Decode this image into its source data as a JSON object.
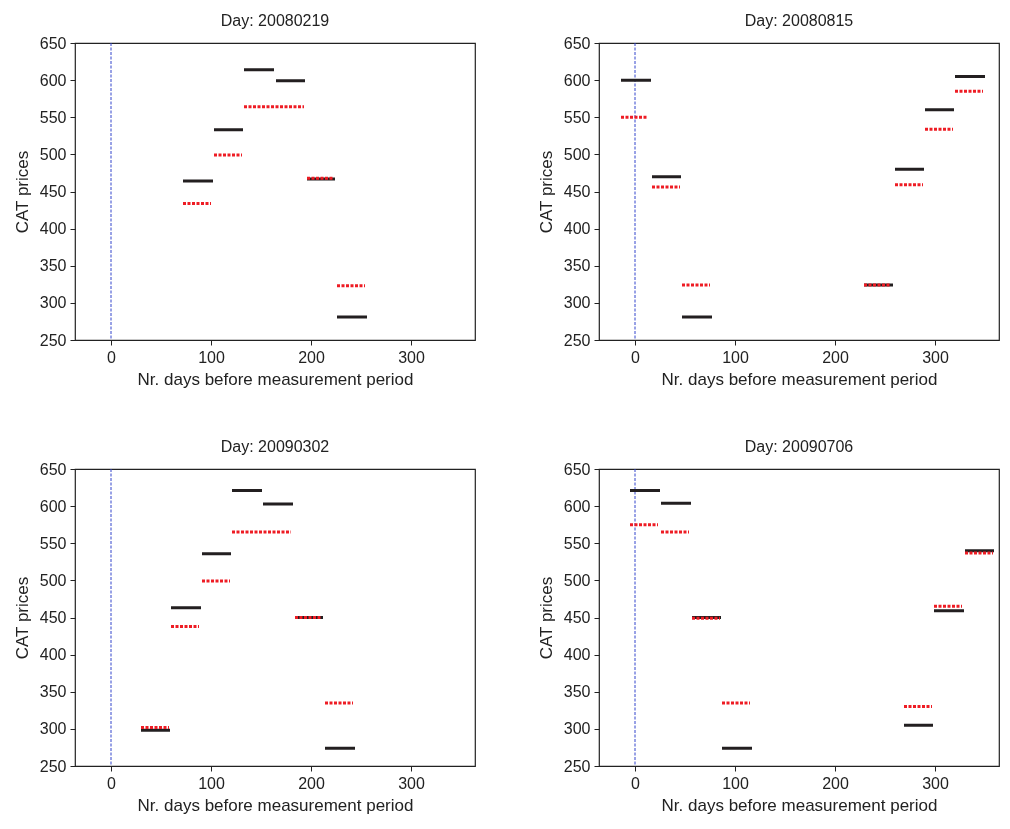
{
  "chart_data": [
    {
      "type": "line",
      "title": "Day: 20080219",
      "xlabel": "Nr. days before measurement period",
      "ylabel": "CAT prices",
      "xlim": [
        -36,
        364
      ],
      "ylim": [
        250,
        650
      ],
      "xticks": [
        0,
        100,
        200,
        300
      ],
      "yticks": [
        250,
        300,
        350,
        400,
        450,
        500,
        550,
        600,
        650
      ],
      "ref_lines": [
        {
          "axis": "x",
          "value": 0,
          "color": "#3344cc",
          "line_style": "dotted"
        }
      ],
      "series": [
        {
          "color": "#231f20",
          "line_style": "solid",
          "x": [
            72,
            102,
            null,
            103,
            132,
            null,
            133,
            163,
            null,
            165,
            194,
            null,
            196,
            224,
            null,
            226,
            256
          ],
          "values": [
            464,
            464,
            null,
            533,
            533,
            null,
            614,
            614,
            null,
            599,
            599,
            null,
            467,
            467,
            null,
            281,
            281
          ]
        },
        {
          "color": "#ee1c24",
          "line_style": "dotted",
          "x": [
            72,
            100,
            null,
            103,
            131,
            null,
            133,
            193,
            null,
            196,
            223,
            null,
            226,
            254
          ],
          "values": [
            434,
            434,
            null,
            499,
            499,
            null,
            564,
            564,
            null,
            468,
            468,
            null,
            323,
            323
          ]
        }
      ]
    },
    {
      "type": "line",
      "title": "Day: 20080815",
      "xlabel": "Nr. days before measurement period",
      "ylabel": "CAT prices",
      "xlim": [
        -36,
        364
      ],
      "ylim": [
        250,
        650
      ],
      "xticks": [
        0,
        100,
        200,
        300
      ],
      "yticks": [
        250,
        300,
        350,
        400,
        450,
        500,
        550,
        600,
        650
      ],
      "ref_lines": [
        {
          "axis": "x",
          "value": 0,
          "color": "#3344cc",
          "line_style": "dotted"
        }
      ],
      "series": [
        {
          "color": "#231f20",
          "line_style": "solid",
          "x": [
            -14,
            16,
            null,
            17,
            46,
            null,
            47,
            77,
            null,
            229,
            258,
            null,
            260,
            289,
            null,
            290,
            319,
            null,
            320,
            350
          ],
          "values": [
            600,
            600,
            null,
            470,
            470,
            null,
            281,
            281,
            null,
            324,
            324,
            null,
            480,
            480,
            null,
            560,
            560,
            null,
            605,
            605
          ]
        },
        {
          "color": "#ee1c24",
          "line_style": "dotted",
          "x": [
            -14,
            13,
            null,
            17,
            45,
            null,
            47,
            75,
            null,
            229,
            256,
            null,
            260,
            288,
            null,
            290,
            318,
            null,
            320,
            348
          ],
          "values": [
            550,
            550,
            null,
            456,
            456,
            null,
            324,
            324,
            null,
            324,
            324,
            null,
            459,
            459,
            null,
            534,
            534,
            null,
            585,
            585
          ]
        }
      ]
    },
    {
      "type": "line",
      "title": "Day: 20090302",
      "xlabel": "Nr. days before measurement period",
      "ylabel": "CAT prices",
      "xlim": [
        -36,
        364
      ],
      "ylim": [
        250,
        650
      ],
      "xticks": [
        0,
        100,
        200,
        300
      ],
      "yticks": [
        250,
        300,
        350,
        400,
        450,
        500,
        550,
        600,
        650
      ],
      "ref_lines": [
        {
          "axis": "x",
          "value": 0,
          "color": "#3344cc",
          "line_style": "dotted"
        }
      ],
      "series": [
        {
          "color": "#231f20",
          "line_style": "solid",
          "x": [
            30,
            59,
            null,
            60,
            90,
            null,
            91,
            120,
            null,
            121,
            151,
            null,
            152,
            182,
            null,
            184,
            212,
            null,
            214,
            244
          ],
          "values": [
            298,
            298,
            null,
            463,
            463,
            null,
            536,
            536,
            null,
            621,
            621,
            null,
            603,
            603,
            null,
            450,
            450,
            null,
            274,
            274
          ]
        },
        {
          "color": "#ee1c24",
          "line_style": "dotted",
          "x": [
            30,
            58,
            null,
            60,
            88,
            null,
            91,
            119,
            null,
            121,
            180,
            null,
            184,
            211,
            null,
            214,
            242
          ],
          "values": [
            302,
            302,
            null,
            438,
            438,
            null,
            499,
            499,
            null,
            565,
            565,
            null,
            450,
            450,
            null,
            335,
            335
          ]
        }
      ]
    },
    {
      "type": "line",
      "title": "Day: 20090706",
      "xlabel": "Nr. days before measurement period",
      "ylabel": "CAT prices",
      "xlim": [
        -36,
        364
      ],
      "ylim": [
        250,
        650
      ],
      "xticks": [
        0,
        100,
        200,
        300
      ],
      "yticks": [
        250,
        300,
        350,
        400,
        450,
        500,
        550,
        600,
        650
      ],
      "ref_lines": [
        {
          "axis": "x",
          "value": 0,
          "color": "#3344cc",
          "line_style": "dotted"
        }
      ],
      "series": [
        {
          "color": "#231f20",
          "line_style": "solid",
          "x": [
            -5,
            25,
            null,
            26,
            56,
            null,
            57,
            86,
            null,
            87,
            117,
            null,
            269,
            298,
            null,
            299,
            329,
            null,
            330,
            359
          ],
          "values": [
            621,
            621,
            null,
            604,
            604,
            null,
            450,
            450,
            null,
            274,
            274,
            null,
            305,
            305,
            null,
            459,
            459,
            null,
            540,
            540
          ]
        },
        {
          "color": "#ee1c24",
          "line_style": "dotted",
          "x": [
            -5,
            23,
            null,
            26,
            54,
            null,
            57,
            85,
            null,
            87,
            115,
            null,
            269,
            297,
            null,
            299,
            327,
            null,
            330,
            358
          ],
          "values": [
            575,
            575,
            null,
            565,
            565,
            null,
            449,
            449,
            null,
            335,
            335,
            null,
            330,
            330,
            null,
            465,
            465,
            null,
            537,
            537
          ]
        }
      ]
    }
  ]
}
